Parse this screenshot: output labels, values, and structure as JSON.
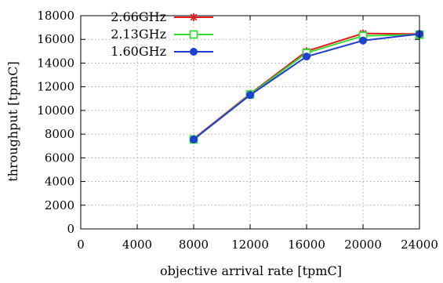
{
  "chart_data": {
    "type": "line",
    "xlabel": "objective arrival rate [tpmC]",
    "ylabel": "throughput [tpmC]",
    "xlim": [
      0,
      24000
    ],
    "ylim": [
      0,
      18000
    ],
    "xticks": [
      0,
      4000,
      8000,
      12000,
      16000,
      20000,
      24000
    ],
    "yticks": [
      0,
      2000,
      4000,
      6000,
      8000,
      10000,
      12000,
      14000,
      16000,
      18000
    ],
    "xtick_labels": [
      "0",
      "4000",
      "8000",
      "12000",
      "16000",
      "20000",
      "24000"
    ],
    "ytick_labels": [
      "0",
      "2000",
      "4000",
      "6000",
      "8000",
      "10000",
      "12000",
      "14000",
      "16000",
      "18000"
    ],
    "grid": true,
    "legend_position": "top-left",
    "series": [
      {
        "name": "2.66GHz",
        "color": "#e41a1c",
        "marker": "star",
        "x": [
          8000,
          12000,
          16000,
          20000,
          24000
        ],
        "y": [
          7600,
          11400,
          15000,
          16500,
          16450
        ]
      },
      {
        "name": "2.13GHz",
        "color": "#33dd33",
        "marker": "open-square",
        "x": [
          8000,
          12000,
          16000,
          20000,
          24000
        ],
        "y": [
          7550,
          11350,
          14850,
          16300,
          16400
        ]
      },
      {
        "name": "1.60GHz",
        "color": "#1f3fd0",
        "marker": "filled-circle",
        "x": [
          8000,
          12000,
          16000,
          20000,
          24000
        ],
        "y": [
          7550,
          11300,
          14550,
          15900,
          16450
        ]
      }
    ]
  }
}
